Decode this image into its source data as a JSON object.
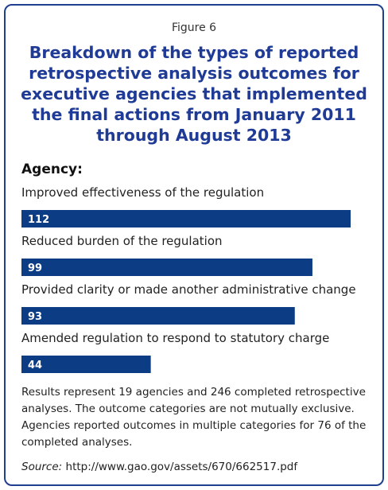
{
  "figure_label": "Figure 6",
  "title": "Breakdown of the types of reported retrospective analysis outcomes for executive agencies that implemented the final actions from January 2011 through August 2013",
  "group_label": "Agency:",
  "chart_data": {
    "type": "bar",
    "orientation": "horizontal",
    "categories": [
      "Improved effectiveness of the regulation",
      "Reduced burden of the regulation",
      "Provided clarity or made another administrative change",
      "Amended regulation to respond to statutory charge"
    ],
    "values": [
      112,
      99,
      93,
      44
    ],
    "value_labels": [
      "112",
      "99",
      "93",
      "44"
    ],
    "xlim": [
      0,
      112
    ],
    "grid": false,
    "legend": "none",
    "bar_color": "#0c3c84",
    "value_label_color": "#ffffff"
  },
  "note": "Results represent 19 agencies and 246 completed retrospective analyses. The outcome categories are not mutually exclusive. Agencies reported outcomes in multiple categories for 76 of the completed analyses.",
  "source": {
    "label": "Source:",
    "text": "http://www.gao.gov/assets/670/662517.pdf"
  },
  "colors": {
    "title": "#1f3b95",
    "border": "#1f3f8f",
    "bar": "#0c3c84"
  }
}
